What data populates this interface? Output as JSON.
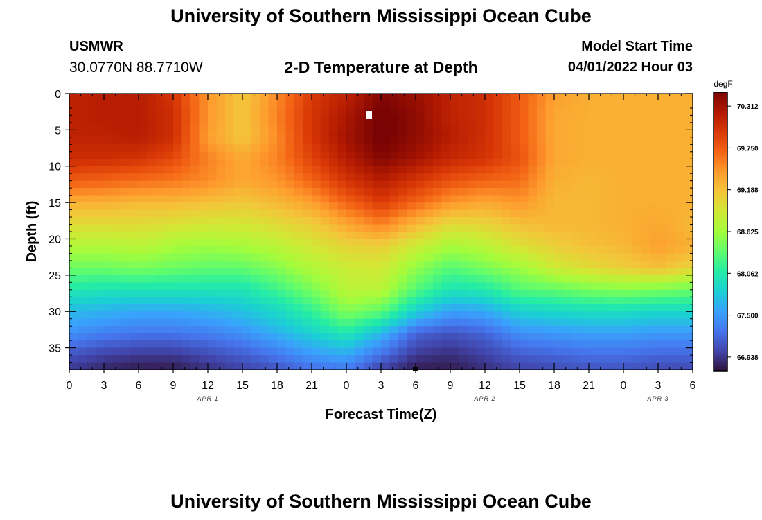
{
  "header": {
    "title": "University of Southern Mississippi Ocean Cube",
    "station": "USMWR",
    "coords": "30.0770N  88.7710W",
    "subtitle": "2-D Temperature at Depth",
    "model_start_label": "Model Start Time",
    "model_start_value": "04/01/2022 Hour 03"
  },
  "footer": {
    "title": "University of Southern Mississippi Ocean Cube"
  },
  "chart_data": {
    "type": "heatmap",
    "title": "2-D Temperature at Depth",
    "xlabel": "Forecast Time(Z)",
    "ylabel": "Depth (ft)",
    "x_ticks": [
      "0",
      "3",
      "6",
      "9",
      "12",
      "15",
      "18",
      "21",
      "0",
      "3",
      "6",
      "9",
      "12",
      "15",
      "18",
      "21",
      "0",
      "3",
      "6"
    ],
    "x_range_hours": [
      0,
      54
    ],
    "date_labels": [
      {
        "text": "APR 1",
        "hour": 12
      },
      {
        "text": "APR 2",
        "hour": 36
      },
      {
        "text": "APR 3",
        "hour": 51
      }
    ],
    "y_ticks": [
      0,
      5,
      10,
      15,
      20,
      25,
      30,
      35
    ],
    "y_range_ft": [
      0,
      38
    ],
    "y_inverted": true,
    "colorbar": {
      "unit": "degF",
      "min": 66.75,
      "max": 70.5,
      "tick_values": [
        70.312,
        69.75,
        69.188,
        68.625,
        68.062,
        67.5,
        66.938
      ],
      "tick_labels": [
        "70.312",
        "69.750",
        "69.188",
        "68.625",
        "68.062",
        "67.500",
        "66.938"
      ],
      "colors": [
        "#30123b",
        "#4145ab",
        "#4675ed",
        "#39a2fc",
        "#1bcfd4",
        "#24eca6",
        "#61fc6c",
        "#a4fc3b",
        "#d1e834",
        "#f3c63a",
        "#fe9b2d",
        "#f36315",
        "#d93806",
        "#b11901",
        "#7a0403"
      ]
    },
    "grid_depths_ft": [
      0,
      3,
      6,
      9,
      12,
      15,
      18,
      21,
      24,
      27,
      30,
      33,
      36,
      38
    ],
    "grid_hours": [
      0,
      3,
      6,
      9,
      12,
      15,
      18,
      21,
      24,
      27,
      30,
      33,
      36,
      39,
      42,
      45,
      48,
      51,
      54
    ],
    "temperature_degF": [
      [
        70.15,
        70.2,
        70.2,
        70.0,
        69.45,
        69.15,
        69.5,
        69.95,
        70.15,
        70.45,
        70.35,
        70.15,
        70.05,
        69.75,
        69.4,
        69.3,
        69.3,
        69.3,
        69.3
      ],
      [
        70.15,
        70.2,
        70.2,
        70.05,
        69.45,
        69.15,
        69.55,
        70.0,
        70.25,
        70.55,
        70.4,
        70.15,
        70.05,
        69.75,
        69.35,
        69.3,
        69.3,
        69.3,
        69.3
      ],
      [
        70.15,
        70.15,
        70.2,
        70.05,
        69.4,
        69.15,
        69.5,
        70.0,
        70.3,
        70.55,
        70.4,
        70.2,
        70.05,
        69.75,
        69.35,
        69.3,
        69.3,
        69.3,
        69.3
      ],
      [
        70.05,
        70.05,
        70.0,
        69.85,
        69.55,
        69.35,
        69.55,
        69.9,
        70.2,
        70.45,
        70.3,
        70.1,
        70.0,
        69.8,
        69.35,
        69.3,
        69.3,
        69.3,
        69.3
      ],
      [
        69.75,
        69.7,
        69.65,
        69.6,
        69.5,
        69.35,
        69.45,
        69.7,
        70.0,
        70.2,
        70.0,
        69.8,
        69.7,
        69.65,
        69.3,
        69.25,
        69.3,
        69.3,
        69.3
      ],
      [
        69.3,
        69.3,
        69.25,
        69.25,
        69.2,
        69.15,
        69.25,
        69.4,
        69.7,
        69.95,
        69.7,
        69.45,
        69.35,
        69.45,
        69.25,
        69.25,
        69.3,
        69.3,
        69.3
      ],
      [
        69.0,
        69.0,
        69.0,
        68.95,
        68.9,
        68.9,
        69.0,
        69.1,
        69.35,
        69.55,
        69.25,
        69.0,
        69.05,
        69.2,
        69.25,
        69.25,
        69.3,
        69.35,
        69.25
      ],
      [
        68.7,
        68.7,
        68.75,
        68.65,
        68.6,
        68.65,
        68.75,
        68.9,
        69.05,
        69.1,
        68.85,
        68.65,
        68.75,
        68.95,
        69.1,
        69.2,
        69.25,
        69.4,
        69.3
      ],
      [
        68.4,
        68.4,
        68.45,
        68.4,
        68.35,
        68.35,
        68.5,
        68.7,
        68.85,
        68.9,
        68.55,
        68.3,
        68.45,
        68.6,
        68.85,
        69.0,
        69.1,
        69.2,
        69.05
      ],
      [
        68.05,
        68.0,
        68.0,
        68.0,
        68.0,
        68.0,
        68.2,
        68.45,
        68.75,
        68.75,
        68.3,
        68.0,
        68.05,
        68.3,
        68.35,
        68.45,
        68.5,
        68.45,
        68.4
      ],
      [
        67.7,
        67.65,
        67.6,
        67.6,
        67.65,
        67.75,
        67.9,
        68.15,
        68.5,
        68.35,
        67.85,
        67.55,
        67.6,
        67.85,
        67.9,
        67.95,
        67.95,
        67.9,
        67.9
      ],
      [
        67.45,
        67.35,
        67.3,
        67.3,
        67.35,
        67.45,
        67.65,
        67.85,
        68.05,
        67.7,
        67.2,
        67.1,
        67.2,
        67.45,
        67.5,
        67.55,
        67.55,
        67.5,
        67.5
      ],
      [
        67.1,
        67.0,
        66.95,
        66.95,
        67.05,
        67.15,
        67.3,
        67.5,
        67.6,
        67.25,
        66.95,
        66.9,
        67.0,
        67.15,
        67.2,
        67.25,
        67.25,
        67.2,
        67.2
      ],
      [
        66.95,
        66.85,
        66.8,
        66.8,
        66.9,
        67.0,
        67.1,
        67.25,
        67.3,
        67.0,
        66.8,
        66.8,
        66.9,
        67.0,
        67.05,
        67.1,
        67.1,
        67.05,
        67.05
      ]
    ]
  }
}
